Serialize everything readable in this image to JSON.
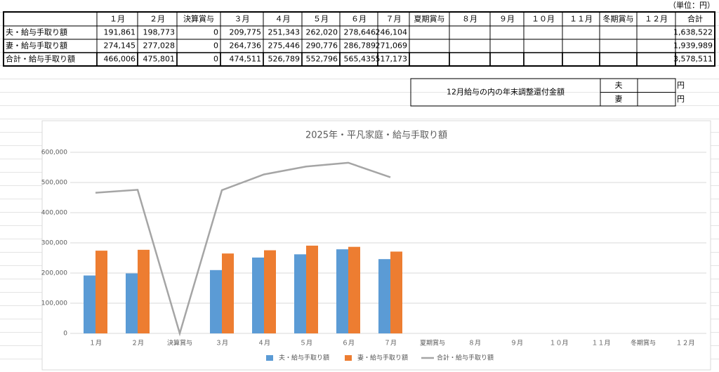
{
  "header": {
    "unit": "（単位：円）"
  },
  "table": {
    "columns": [
      "１月",
      "２月",
      "決算賞与",
      "３月",
      "４月",
      "５月",
      "６月",
      "７月",
      "夏期賞与",
      "８月",
      "９月",
      "１０月",
      "１１月",
      "冬期賞与",
      "１２月",
      "合計"
    ],
    "rows": [
      [
        "夫・給与手取り額",
        "191,861",
        "198,773",
        "0",
        "209,775",
        "251,343",
        "262,020",
        "278,646",
        "246,104",
        null,
        null,
        null,
        null,
        null,
        null,
        null,
        "1,638,522"
      ],
      [
        "妻・給与手取り額",
        "274,145",
        "277,028",
        "0",
        "264,736",
        "275,446",
        "290,776",
        "286,789",
        "271,069",
        null,
        null,
        null,
        null,
        null,
        null,
        null,
        "1,939,989"
      ],
      [
        "合計・給与手取り額",
        "466,006",
        "475,801",
        "0",
        "474,511",
        "526,789",
        "552,796",
        "565,435",
        "517,173",
        null,
        null,
        null,
        null,
        null,
        null,
        null,
        "3,578,511"
      ]
    ]
  },
  "adjustment_box": {
    "label": "12月給与の内の年末調整還付金額",
    "rows": [
      [
        "夫",
        "円"
      ],
      [
        "妻",
        "円"
      ]
    ]
  },
  "chart_data": {
    "type": "bar",
    "title": "2025年・平凡家庭・給与手取り額",
    "categories": [
      "１月",
      "２月",
      "決算賞与",
      "３月",
      "４月",
      "５月",
      "６月",
      "７月",
      "夏期賞与",
      "８月",
      "９月",
      "１０月",
      "１１月",
      "冬期賞与",
      "１２月"
    ],
    "series": [
      {
        "name": "夫・給与手取り額",
        "type": "bar",
        "color": "#5b9bd5",
        "values": [
          191861,
          198773,
          0,
          209775,
          251343,
          262020,
          278646,
          246104,
          null,
          null,
          null,
          null,
          null,
          null,
          null
        ]
      },
      {
        "name": "妻・給与手取り額",
        "type": "bar",
        "color": "#ed7d31",
        "values": [
          274145,
          277028,
          0,
          264736,
          275446,
          290776,
          286789,
          271069,
          null,
          null,
          null,
          null,
          null,
          null,
          null
        ]
      },
      {
        "name": "合計・給与手取り額",
        "type": "line",
        "color": "#a5a5a5",
        "values": [
          466006,
          475801,
          0,
          474511,
          526789,
          552796,
          565435,
          517173,
          null,
          null,
          null,
          null,
          null,
          null,
          null
        ]
      }
    ],
    "ylim": [
      0,
      600000
    ],
    "yticks": [
      0,
      {
        "value": 100000,
        "label": "100,000"
      },
      {
        "value": 200000,
        "label": "200,000"
      },
      {
        "value": 300000,
        "label": "300,000"
      },
      {
        "value": 400000,
        "label": "400,000"
      },
      {
        "value": 500000,
        "label": "500,000"
      },
      {
        "value": 600000,
        "label": "600,000"
      }
    ],
    "grid": true,
    "legend": "bottom"
  }
}
